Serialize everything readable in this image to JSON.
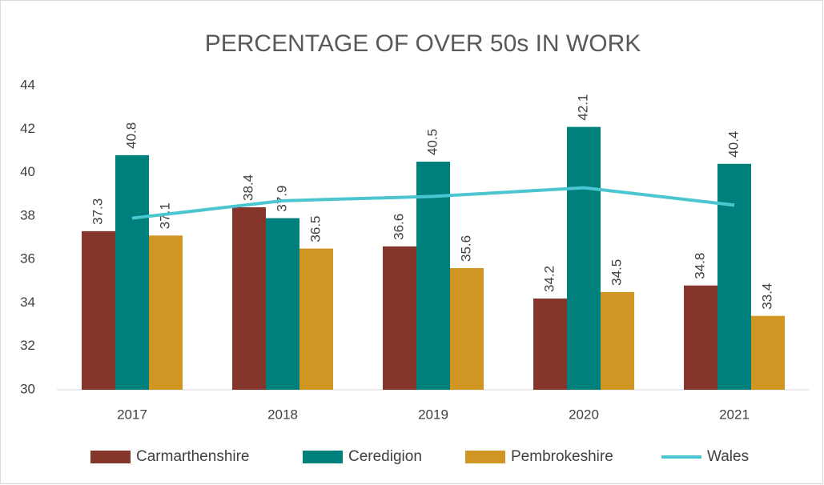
{
  "chart_data": {
    "type": "bar",
    "title": "PERCENTAGE OF OVER 50s IN WORK",
    "categories": [
      "2017",
      "2018",
      "2019",
      "2020",
      "2021"
    ],
    "series": [
      {
        "name": "Carmarthenshire",
        "color": "#86352a",
        "type": "bar",
        "values": [
          37.3,
          38.4,
          36.6,
          34.2,
          34.8
        ]
      },
      {
        "name": "Ceredigion",
        "color": "#00807d",
        "type": "bar",
        "values": [
          40.8,
          37.9,
          40.5,
          42.1,
          40.4
        ]
      },
      {
        "name": "Pembrokeshire",
        "color": "#d09523",
        "type": "bar",
        "values": [
          37.1,
          36.5,
          35.6,
          34.5,
          33.4
        ]
      },
      {
        "name": "Wales",
        "color": "#4bc5d0",
        "type": "line",
        "values": [
          37.9,
          38.7,
          38.9,
          39.3,
          38.5
        ]
      }
    ],
    "ylim": [
      30,
      44
    ],
    "yticks": [
      30,
      32,
      34,
      36,
      38,
      40,
      42,
      44
    ],
    "grid": false,
    "legend": "bottom"
  }
}
